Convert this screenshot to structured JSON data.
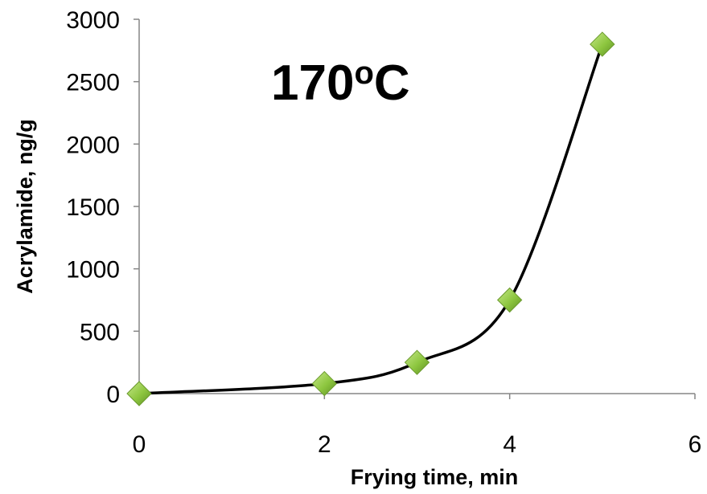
{
  "chart_data": {
    "type": "scatter",
    "title": "",
    "annotation": {
      "main": "170",
      "superscript": "o",
      "suffix": "C"
    },
    "xlabel": "Frying time, min",
    "ylabel": "Acrylamide, ng/g",
    "xlim": [
      0,
      6
    ],
    "ylim": [
      0,
      3000
    ],
    "x_ticks": [
      "0",
      "2",
      "4",
      "6"
    ],
    "y_ticks": [
      "0",
      "500",
      "1000",
      "1500",
      "2000",
      "2500",
      "3000"
    ],
    "grid": false,
    "legend": "none",
    "series": [
      {
        "x": [
          0,
          2,
          3,
          4,
          5
        ],
        "y": [
          0,
          80,
          250,
          750,
          2800
        ],
        "line_color": "#000000",
        "marker": "diamond",
        "marker_color": "#8dc63f"
      }
    ]
  }
}
